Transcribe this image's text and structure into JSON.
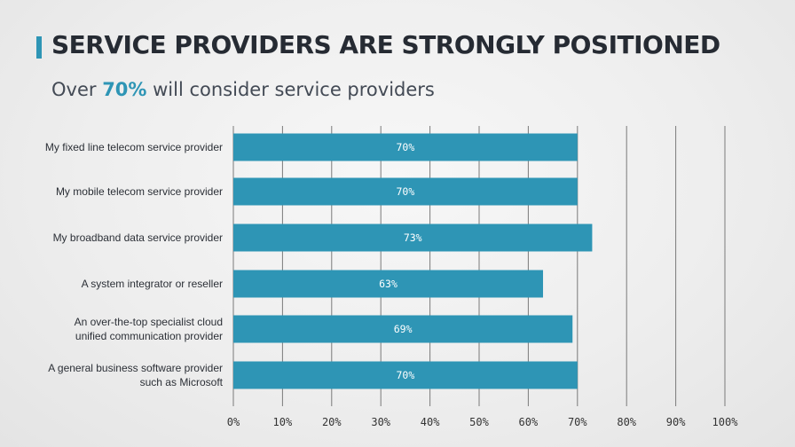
{
  "slide": {
    "title": "SERVICE PROVIDERS ARE STRONGLY POSITIONED",
    "subtitle_prefix": "Over ",
    "subtitle_highlight": "70%",
    "subtitle_suffix": " will consider service providers",
    "accent_color": "#2e95b5",
    "bar_color": "#2e95b5",
    "title_color": "#262b33"
  },
  "chart_data": {
    "type": "bar",
    "orientation": "horizontal",
    "title": "",
    "xlabel": "",
    "ylabel": "",
    "xlim": [
      0,
      100
    ],
    "grid": true,
    "categories": [
      [
        "My fixed line telecom service provider"
      ],
      [
        "My mobile telecom service provider"
      ],
      [
        "My broadband data service provider"
      ],
      [
        "A system integrator or reseller"
      ],
      [
        "An over-the-top specialist cloud",
        "unified communication provider"
      ],
      [
        "A general business software provider",
        "such as Microsoft"
      ]
    ],
    "values": [
      70,
      70,
      73,
      63,
      69,
      70
    ],
    "value_labels": [
      "70%",
      "70%",
      "73%",
      "63%",
      "69%",
      "70%"
    ],
    "ticks": [
      0,
      10,
      20,
      30,
      40,
      50,
      60,
      70,
      80,
      90,
      100
    ],
    "tick_labels": [
      "0%",
      "10%",
      "20%",
      "30%",
      "40%",
      "50%",
      "60%",
      "70%",
      "80%",
      "90%",
      "100%"
    ]
  }
}
